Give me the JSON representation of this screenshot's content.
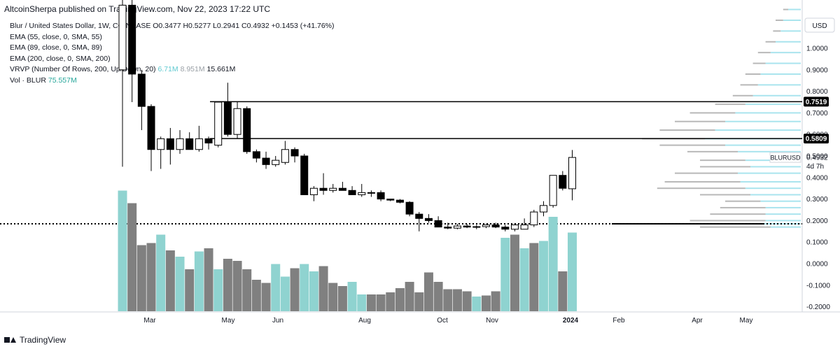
{
  "header": {
    "text": "AltcoinSherpa published on TradingView.com, Nov 22, 2023 17:22 UTC"
  },
  "legend": {
    "symbol_line": {
      "name": "Blur / United States Dollar, 1W, COINBASE",
      "o": "O0.3477",
      "h": "H0.5277",
      "l": "L0.2941",
      "c": "C0.4932",
      "chg": "+0.1453 (+41.76%)"
    },
    "ema55": "EMA (55, close, 0, SMA, 55)",
    "ema89": "EMA (89, close, 0, SMA, 89)",
    "ema200": "EMA (200, close, 0, SMA, 200)",
    "vrvp": {
      "label": "VRVP (Number Of Rows, 200, Up/Down, 20)",
      "v1": "6.71M",
      "v2": "8.951M",
      "v3": "15.661M"
    },
    "vol": {
      "label": "Vol · BLUR",
      "value": "75.557M"
    }
  },
  "footer": {
    "brand": "TradingView"
  },
  "colors": {
    "up_fill": "#ffffff",
    "down_fill": "#000000",
    "candle_border": "#000000",
    "vol_up": "#8fd3d0",
    "vol_down": "#808080",
    "vp_up": "#a9e4ee",
    "vp_down": "#b8b8b8",
    "vp_poc": "#000000",
    "axis_text": "#131722"
  },
  "chart_data": {
    "type": "candlestick",
    "timeframe": "1W",
    "currency": "USD",
    "x_axis_labels": [
      "Mar",
      "May",
      "Jun",
      "Aug",
      "Oct",
      "Nov",
      "2024",
      "Feb",
      "Apr",
      "May"
    ],
    "price_ticks": [
      "1.0000",
      "0.9000",
      "0.8000",
      "0.7000",
      "0.6000",
      "0.5000",
      "0.4000",
      "0.3000",
      "0.2000",
      "0.1000",
      "0.0000",
      "-0.1000",
      "-0.2000"
    ],
    "ylim": [
      -0.22,
      1.22
    ],
    "candles": [
      {
        "o": 0.9,
        "h": 1.35,
        "l": 0.45,
        "c": 1.2
      },
      {
        "o": 1.2,
        "h": 1.3,
        "l": 0.75,
        "c": 0.88
      },
      {
        "o": 0.88,
        "h": 0.9,
        "l": 0.62,
        "c": 0.73
      },
      {
        "o": 0.73,
        "h": 0.74,
        "l": 0.43,
        "c": 0.53
      },
      {
        "o": 0.53,
        "h": 0.59,
        "l": 0.44,
        "c": 0.58
      },
      {
        "o": 0.58,
        "h": 0.63,
        "l": 0.46,
        "c": 0.53
      },
      {
        "o": 0.53,
        "h": 0.62,
        "l": 0.51,
        "c": 0.58
      },
      {
        "o": 0.58,
        "h": 0.61,
        "l": 0.53,
        "c": 0.53
      },
      {
        "o": 0.53,
        "h": 0.64,
        "l": 0.52,
        "c": 0.58
      },
      {
        "o": 0.58,
        "h": 0.59,
        "l": 0.53,
        "c": 0.56
      },
      {
        "o": 0.55,
        "h": 0.75,
        "l": 0.54,
        "c": 0.75
      },
      {
        "o": 0.75,
        "h": 0.84,
        "l": 0.59,
        "c": 0.6
      },
      {
        "o": 0.6,
        "h": 0.75,
        "l": 0.58,
        "c": 0.72
      },
      {
        "o": 0.72,
        "h": 0.73,
        "l": 0.51,
        "c": 0.52
      },
      {
        "o": 0.52,
        "h": 0.53,
        "l": 0.47,
        "c": 0.49
      },
      {
        "o": 0.49,
        "h": 0.52,
        "l": 0.44,
        "c": 0.46
      },
      {
        "o": 0.46,
        "h": 0.5,
        "l": 0.45,
        "c": 0.48
      },
      {
        "o": 0.47,
        "h": 0.57,
        "l": 0.46,
        "c": 0.53
      },
      {
        "o": 0.53,
        "h": 0.54,
        "l": 0.47,
        "c": 0.5
      },
      {
        "o": 0.5,
        "h": 0.51,
        "l": 0.33,
        "c": 0.32
      },
      {
        "o": 0.32,
        "h": 0.36,
        "l": 0.29,
        "c": 0.35
      },
      {
        "o": 0.35,
        "h": 0.42,
        "l": 0.32,
        "c": 0.34
      },
      {
        "o": 0.34,
        "h": 0.37,
        "l": 0.33,
        "c": 0.35
      },
      {
        "o": 0.35,
        "h": 0.38,
        "l": 0.34,
        "c": 0.34
      },
      {
        "o": 0.34,
        "h": 0.36,
        "l": 0.32,
        "c": 0.32
      },
      {
        "o": 0.32,
        "h": 0.37,
        "l": 0.31,
        "c": 0.33
      },
      {
        "o": 0.33,
        "h": 0.34,
        "l": 0.31,
        "c": 0.33
      },
      {
        "o": 0.33,
        "h": 0.34,
        "l": 0.29,
        "c": 0.3
      },
      {
        "o": 0.3,
        "h": 0.3,
        "l": 0.29,
        "c": 0.295
      },
      {
        "o": 0.295,
        "h": 0.3,
        "l": 0.28,
        "c": 0.285
      },
      {
        "o": 0.285,
        "h": 0.29,
        "l": 0.22,
        "c": 0.23
      },
      {
        "o": 0.23,
        "h": 0.24,
        "l": 0.15,
        "c": 0.21
      },
      {
        "o": 0.21,
        "h": 0.23,
        "l": 0.19,
        "c": 0.2
      },
      {
        "o": 0.2,
        "h": 0.22,
        "l": 0.17,
        "c": 0.17
      },
      {
        "o": 0.17,
        "h": 0.19,
        "l": 0.16,
        "c": 0.165
      },
      {
        "o": 0.165,
        "h": 0.185,
        "l": 0.16,
        "c": 0.175
      },
      {
        "o": 0.175,
        "h": 0.185,
        "l": 0.165,
        "c": 0.17
      },
      {
        "o": 0.17,
        "h": 0.18,
        "l": 0.16,
        "c": 0.172
      },
      {
        "o": 0.172,
        "h": 0.18,
        "l": 0.165,
        "c": 0.18
      },
      {
        "o": 0.18,
        "h": 0.19,
        "l": 0.165,
        "c": 0.17
      },
      {
        "o": 0.17,
        "h": 0.18,
        "l": 0.15,
        "c": 0.16
      },
      {
        "o": 0.16,
        "h": 0.18,
        "l": 0.15,
        "c": 0.18
      },
      {
        "o": 0.16,
        "h": 0.21,
        "l": 0.16,
        "c": 0.18
      },
      {
        "o": 0.18,
        "h": 0.25,
        "l": 0.17,
        "c": 0.24
      },
      {
        "o": 0.24,
        "h": 0.29,
        "l": 0.22,
        "c": 0.27
      },
      {
        "o": 0.27,
        "h": 0.41,
        "l": 0.26,
        "c": 0.41
      },
      {
        "o": 0.41,
        "h": 0.43,
        "l": 0.34,
        "c": 0.35
      },
      {
        "o": 0.3477,
        "h": 0.5277,
        "l": 0.2941,
        "c": 0.4932
      }
    ],
    "volume": [
      {
        "v": 1.15,
        "up": true
      },
      {
        "v": 1.03,
        "up": false
      },
      {
        "v": 0.63,
        "up": false
      },
      {
        "v": 0.65,
        "up": false
      },
      {
        "v": 0.73,
        "up": true
      },
      {
        "v": 0.58,
        "up": false
      },
      {
        "v": 0.52,
        "up": true
      },
      {
        "v": 0.4,
        "up": false
      },
      {
        "v": 0.57,
        "up": true
      },
      {
        "v": 0.6,
        "up": false
      },
      {
        "v": 0.4,
        "up": true
      },
      {
        "v": 0.5,
        "up": false
      },
      {
        "v": 0.48,
        "up": false
      },
      {
        "v": 0.4,
        "up": false
      },
      {
        "v": 0.3,
        "up": false
      },
      {
        "v": 0.27,
        "up": false
      },
      {
        "v": 0.45,
        "up": true
      },
      {
        "v": 0.33,
        "up": true
      },
      {
        "v": 0.41,
        "up": false
      },
      {
        "v": 0.45,
        "up": true
      },
      {
        "v": 0.38,
        "up": true
      },
      {
        "v": 0.43,
        "up": false
      },
      {
        "v": 0.27,
        "up": false
      },
      {
        "v": 0.24,
        "up": false
      },
      {
        "v": 0.28,
        "up": true
      },
      {
        "v": 0.16,
        "up": true
      },
      {
        "v": 0.16,
        "up": false
      },
      {
        "v": 0.16,
        "up": false
      },
      {
        "v": 0.18,
        "up": false
      },
      {
        "v": 0.22,
        "up": false
      },
      {
        "v": 0.28,
        "up": false
      },
      {
        "v": 0.18,
        "up": false
      },
      {
        "v": 0.37,
        "up": false
      },
      {
        "v": 0.28,
        "up": false
      },
      {
        "v": 0.21,
        "up": false
      },
      {
        "v": 0.21,
        "up": false
      },
      {
        "v": 0.19,
        "up": false
      },
      {
        "v": 0.14,
        "up": true
      },
      {
        "v": 0.15,
        "up": false
      },
      {
        "v": 0.19,
        "up": false
      },
      {
        "v": 0.7,
        "up": true
      },
      {
        "v": 0.73,
        "up": false
      },
      {
        "v": 0.6,
        "up": true
      },
      {
        "v": 0.65,
        "up": false
      },
      {
        "v": 0.67,
        "up": true
      },
      {
        "v": 0.9,
        "up": true
      },
      {
        "v": 0.38,
        "up": false
      },
      {
        "v": 0.75,
        "up": true
      }
    ],
    "horizontal_lines": [
      {
        "value": 0.7519,
        "label": "0.7519",
        "style": "solid"
      },
      {
        "value": 0.5809,
        "label": "0.5809",
        "style": "solid"
      },
      {
        "value": 0.185,
        "style": "dotted"
      }
    ],
    "last_price": {
      "symbol": "BLURUSD",
      "value": "0.4932",
      "countdown": "4d 7h"
    },
    "volume_profile": [
      {
        "p": 1.18,
        "up": 0.05,
        "down": 0.02
      },
      {
        "p": 1.13,
        "up": 0.07,
        "down": 0.03
      },
      {
        "p": 1.08,
        "up": 0.08,
        "down": 0.03
      },
      {
        "p": 1.03,
        "up": 0.1,
        "down": 0.04
      },
      {
        "p": 0.98,
        "up": 0.12,
        "down": 0.05
      },
      {
        "p": 0.93,
        "up": 0.14,
        "down": 0.05
      },
      {
        "p": 0.88,
        "up": 0.16,
        "down": 0.06
      },
      {
        "p": 0.83,
        "up": 0.17,
        "down": 0.07
      },
      {
        "p": 0.78,
        "up": 0.19,
        "down": 0.08
      },
      {
        "p": 0.74,
        "up": 0.22,
        "down": 0.12
      },
      {
        "p": 0.7,
        "up": 0.26,
        "down": 0.18
      },
      {
        "p": 0.66,
        "up": 0.3,
        "down": 0.2
      },
      {
        "p": 0.62,
        "up": 0.34,
        "down": 0.22
      },
      {
        "p": 0.58,
        "up": 0.38,
        "down": 0.25
      },
      {
        "p": 0.55,
        "up": 0.3,
        "down": 0.26
      },
      {
        "p": 0.52,
        "up": 0.25,
        "down": 0.2
      },
      {
        "p": 0.48,
        "up": 0.22,
        "down": 0.18
      },
      {
        "p": 0.45,
        "up": 0.2,
        "down": 0.2
      },
      {
        "p": 0.42,
        "up": 0.25,
        "down": 0.25
      },
      {
        "p": 0.38,
        "up": 0.24,
        "down": 0.3
      },
      {
        "p": 0.35,
        "up": 0.22,
        "down": 0.35
      },
      {
        "p": 0.32,
        "up": 0.2,
        "down": 0.2
      },
      {
        "p": 0.29,
        "up": 0.16,
        "down": 0.14
      },
      {
        "p": 0.26,
        "up": 0.14,
        "down": 0.18
      },
      {
        "p": 0.23,
        "up": 0.14,
        "down": 0.22
      },
      {
        "p": 0.2,
        "up": 0.14,
        "down": 0.3
      },
      {
        "p": 0.185,
        "up": 0.15,
        "down": 0.6
      },
      {
        "p": 0.17,
        "up": 0.12,
        "down": 0.28
      }
    ]
  }
}
